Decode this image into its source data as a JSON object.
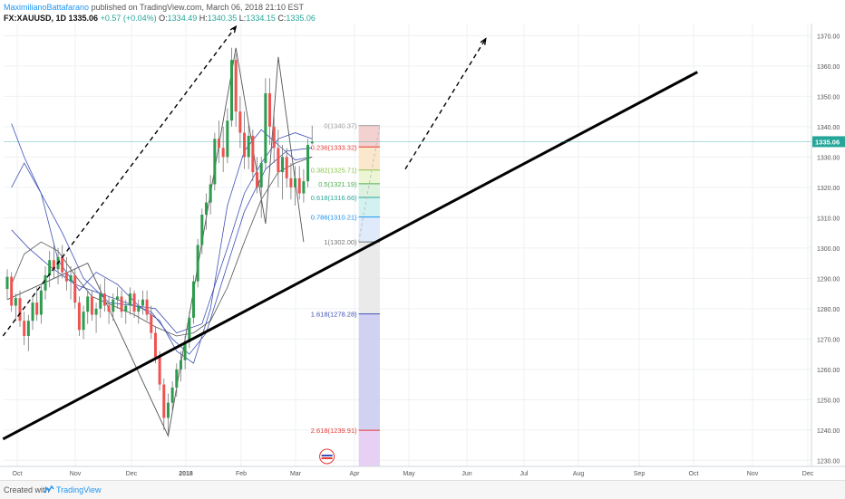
{
  "header": {
    "author": "MaximilianoBattafarano",
    "published": "published on TradingView.com, March 06, 2018 21:10 EST",
    "symbol": "FX:XAUUSD, 1D",
    "last": "1335.06",
    "change": "+0.57 (+0.04%)",
    "ohlc": {
      "o_label": "O:",
      "o": "1334.49",
      "h_label": "H:",
      "h": "1340.35",
      "l_label": "L:",
      "l": "1334.15",
      "c_label": "C:",
      "c": "1335.06"
    }
  },
  "footer": {
    "created_with": "Created with",
    "brand": "TradingView"
  },
  "colors": {
    "up": "#26a69a",
    "up_candle": "#2e9b4f",
    "down": "#ef5350",
    "grid": "#eef0f3",
    "ma_blue": "#3f51b5",
    "ma_dark": "#555555",
    "price_tag": "#26a69a",
    "trend": "#000000"
  },
  "chart_data": {
    "type": "line",
    "instrument": "FX:XAUUSD",
    "timeframe": "1D",
    "y_ticks": [
      1230,
      1240,
      1250,
      1260,
      1270,
      1280,
      1290,
      1300,
      1310,
      1320,
      1330,
      1340,
      1350,
      1360,
      1370
    ],
    "y_tick_labels": [
      "1230.00",
      "1240.00",
      "1250.00",
      "1260.00",
      "1270.00",
      "1280.00",
      "1290.00",
      "1300.00",
      "1310.00",
      "1320.00",
      "1330.00",
      "1340.00",
      "1350.00",
      "1360.00",
      "1370.00"
    ],
    "ylim": [
      1228,
      1374
    ],
    "x_labels": [
      "Oct",
      "Nov",
      "Dec",
      "2018",
      "Feb",
      "Mar",
      "Apr",
      "May",
      "Jun",
      "Jul",
      "Aug",
      "Sep",
      "Oct",
      "Nov",
      "Dec"
    ],
    "last_price": "1335.06",
    "fibonacci": [
      {
        "level": "0",
        "price": 1340.37,
        "label": "0(1340.37)",
        "color": "#9e9e9e"
      },
      {
        "level": "0.236",
        "price": 1333.32,
        "label": "0.236(1333.32)",
        "color": "#e53935"
      },
      {
        "level": "0.382",
        "price": 1325.71,
        "label": "0.382(1325.71)",
        "color": "#8bc34a"
      },
      {
        "level": "0.5",
        "price": 1321.19,
        "label": "0.5(1321.19)",
        "color": "#4caf50"
      },
      {
        "level": "0.618",
        "price": 1316.66,
        "label": "0.618(1316.66)",
        "color": "#26a69a"
      },
      {
        "level": "0.786",
        "price": 1310.21,
        "label": "0.786(1310.21)",
        "color": "#2196f3"
      },
      {
        "level": "1",
        "price": 1302.0,
        "label": "1(1302.00)",
        "color": "#757575"
      },
      {
        "level": "1.618",
        "price": 1278.28,
        "label": "1.618(1278.28)",
        "color": "#3f51b5"
      },
      {
        "level": "2.618",
        "price": 1239.91,
        "label": "2.618(1239.91)",
        "color": "#e53935"
      }
    ],
    "candles": [
      [
        1286.5,
        1293,
        1283,
        1290.5
      ],
      [
        1290.5,
        1292,
        1279,
        1281
      ],
      [
        1281,
        1285,
        1276,
        1283.5
      ],
      [
        1283.5,
        1286,
        1274,
        1276
      ],
      [
        1276,
        1279,
        1268,
        1271
      ],
      [
        1271,
        1278,
        1266,
        1276
      ],
      [
        1276,
        1284,
        1273,
        1282
      ],
      [
        1282,
        1287,
        1276,
        1278
      ],
      [
        1278,
        1288,
        1275,
        1286
      ],
      [
        1286,
        1294,
        1283,
        1291
      ],
      [
        1291,
        1299,
        1287,
        1296
      ],
      [
        1296,
        1302,
        1290,
        1293
      ],
      [
        1293,
        1300,
        1288,
        1297
      ],
      [
        1297,
        1301,
        1290,
        1292
      ],
      [
        1292,
        1297,
        1286,
        1289
      ],
      [
        1289,
        1294,
        1283,
        1291
      ],
      [
        1291,
        1293,
        1280,
        1282
      ],
      [
        1282,
        1284,
        1271,
        1273
      ],
      [
        1273,
        1281,
        1270,
        1279
      ],
      [
        1279,
        1286,
        1275,
        1284
      ],
      [
        1284,
        1286,
        1276,
        1278
      ],
      [
        1278,
        1282,
        1272,
        1280
      ],
      [
        1280,
        1288,
        1277,
        1285
      ],
      [
        1285,
        1290,
        1279,
        1281
      ],
      [
        1281,
        1284,
        1275,
        1279
      ],
      [
        1279,
        1285,
        1276,
        1283
      ],
      [
        1283,
        1287,
        1280,
        1284
      ],
      [
        1284,
        1286,
        1277,
        1279
      ],
      [
        1279,
        1283,
        1275,
        1281
      ],
      [
        1281,
        1287,
        1278,
        1285
      ],
      [
        1285,
        1286,
        1277,
        1279
      ],
      [
        1279,
        1283,
        1275,
        1281
      ],
      [
        1281,
        1286,
        1278,
        1283
      ],
      [
        1283,
        1286,
        1276,
        1278
      ],
      [
        1278,
        1281,
        1270,
        1272
      ],
      [
        1272,
        1274,
        1262,
        1264
      ],
      [
        1264,
        1266,
        1253,
        1255
      ],
      [
        1255,
        1257,
        1240,
        1244
      ],
      [
        1244,
        1252,
        1238,
        1249
      ],
      [
        1249,
        1256,
        1246,
        1254
      ],
      [
        1254,
        1262,
        1251,
        1260
      ],
      [
        1260,
        1266,
        1256,
        1263
      ],
      [
        1263,
        1271,
        1260,
        1269
      ],
      [
        1269,
        1279,
        1267,
        1277
      ],
      [
        1277,
        1291,
        1275,
        1289
      ],
      [
        1289,
        1303,
        1287,
        1301
      ],
      [
        1301,
        1313,
        1298,
        1311
      ],
      [
        1311,
        1318,
        1306,
        1315
      ],
      [
        1315,
        1324,
        1311,
        1321
      ],
      [
        1321,
        1338,
        1319,
        1336
      ],
      [
        1336,
        1342,
        1328,
        1333
      ],
      [
        1333,
        1340,
        1325,
        1330
      ],
      [
        1330,
        1346,
        1328,
        1342
      ],
      [
        1342,
        1366,
        1340,
        1362
      ],
      [
        1362,
        1364,
        1340,
        1345
      ],
      [
        1345,
        1350,
        1333,
        1338
      ],
      [
        1338,
        1345,
        1326,
        1330
      ],
      [
        1330,
        1341,
        1326,
        1337
      ],
      [
        1337,
        1339,
        1322,
        1325
      ],
      [
        1325,
        1330,
        1318,
        1320
      ],
      [
        1320,
        1330,
        1310,
        1328
      ],
      [
        1328,
        1356,
        1326,
        1351
      ],
      [
        1351,
        1356,
        1334,
        1340
      ],
      [
        1340,
        1346,
        1328,
        1333
      ],
      [
        1333,
        1339,
        1320,
        1325
      ],
      [
        1325,
        1334,
        1316,
        1330
      ],
      [
        1330,
        1333,
        1320,
        1323
      ],
      [
        1323,
        1328,
        1316,
        1320
      ],
      [
        1320,
        1327,
        1314,
        1323
      ],
      [
        1323,
        1327,
        1316,
        1318
      ],
      [
        1318,
        1326,
        1315,
        1322
      ],
      [
        1322,
        1336,
        1320,
        1334
      ],
      [
        1334.49,
        1340.35,
        1334.15,
        1335.06
      ]
    ],
    "moving_averages": [
      {
        "color": "#3f51b5",
        "values": [
          [
            1,
            1341
          ],
          [
            4,
            1330
          ],
          [
            8,
            1318
          ],
          [
            13,
            1305
          ],
          [
            18,
            1290
          ],
          [
            24,
            1282
          ],
          [
            30,
            1281
          ],
          [
            35,
            1280
          ],
          [
            40,
            1272
          ],
          [
            46,
            1275
          ],
          [
            52,
            1300
          ],
          [
            56,
            1318
          ],
          [
            60,
            1328
          ],
          [
            64,
            1336
          ],
          [
            68,
            1338
          ],
          [
            72,
            1336
          ]
        ]
      },
      {
        "color": "#3f51b5",
        "values": [
          [
            1,
            1306
          ],
          [
            5,
            1300
          ],
          [
            10,
            1294
          ],
          [
            16,
            1288
          ],
          [
            22,
            1285
          ],
          [
            28,
            1282
          ],
          [
            34,
            1279
          ],
          [
            39,
            1270
          ],
          [
            43,
            1265
          ],
          [
            47,
            1272
          ],
          [
            51,
            1290
          ],
          [
            56,
            1312
          ],
          [
            61,
            1326
          ],
          [
            66,
            1332
          ],
          [
            72,
            1333
          ]
        ]
      },
      {
        "color": "#3f51b5",
        "values": [
          [
            1,
            1320
          ],
          [
            4,
            1328
          ],
          [
            8,
            1318
          ],
          [
            12,
            1296
          ],
          [
            17,
            1286
          ],
          [
            21,
            1292
          ],
          [
            26,
            1288
          ],
          [
            31,
            1281
          ],
          [
            36,
            1276
          ],
          [
            40,
            1266
          ],
          [
            44,
            1262
          ],
          [
            48,
            1280
          ],
          [
            52,
            1314
          ],
          [
            56,
            1332
          ],
          [
            60,
            1339
          ],
          [
            64,
            1334
          ],
          [
            68,
            1329
          ],
          [
            72,
            1330
          ]
        ]
      },
      {
        "color": "#555555",
        "values": [
          [
            1,
            1288
          ],
          [
            4,
            1298
          ],
          [
            8,
            1302
          ],
          [
            12,
            1299
          ],
          [
            16,
            1291
          ],
          [
            20,
            1284
          ],
          [
            25,
            1281
          ],
          [
            30,
            1278
          ],
          [
            35,
            1274
          ],
          [
            40,
            1271
          ],
          [
            44,
            1272
          ],
          [
            48,
            1276
          ],
          [
            52,
            1287
          ],
          [
            56,
            1302
          ],
          [
            60,
            1316
          ],
          [
            64,
            1325
          ],
          [
            68,
            1328
          ],
          [
            72,
            1330
          ]
        ]
      }
    ],
    "zigzag": [
      [
        0,
        1283
      ],
      [
        19,
        1295
      ],
      [
        38,
        1238
      ],
      [
        54,
        1366
      ],
      [
        61,
        1308
      ],
      [
        64,
        1363
      ],
      [
        70,
        1302
      ]
    ],
    "trend_line": [
      [
        -1,
        1237
      ],
      [
        163,
        1358
      ]
    ],
    "dashed_lines": [
      [
        [
          -1,
          1271
        ],
        [
          54,
          1373
        ]
      ],
      [
        [
          94,
          1326
        ],
        [
          113,
          1369
        ]
      ]
    ],
    "fib_box": {
      "x0": 83,
      "x1": 88
    }
  }
}
